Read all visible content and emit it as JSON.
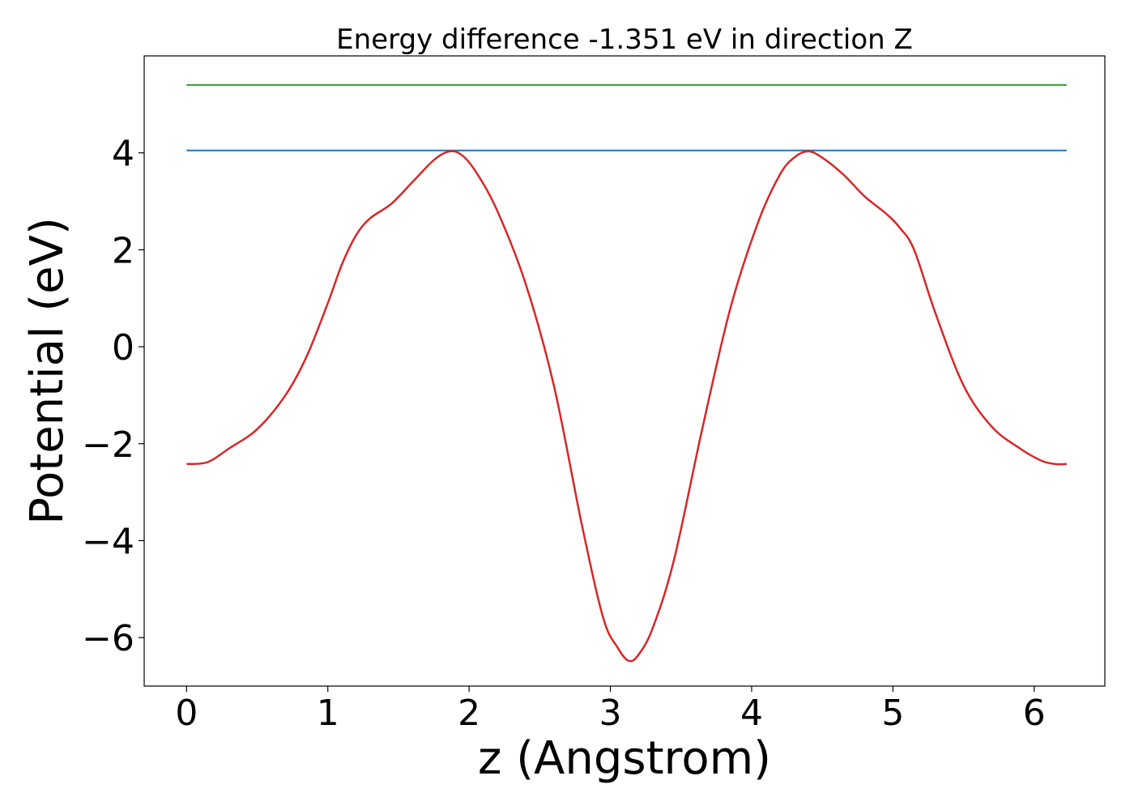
{
  "chart_data": {
    "type": "line",
    "title": "Energy difference -1.351 eV in direction Z",
    "xlabel": "z (Angstrom)",
    "ylabel": "Potential (eV)",
    "xlim": [
      -0.3,
      6.5
    ],
    "ylim": [
      -7.0,
      6.0
    ],
    "xticks": [
      0,
      1,
      2,
      3,
      4,
      5,
      6
    ],
    "xtick_labels": [
      "0",
      "1",
      "2",
      "3",
      "4",
      "5",
      "6"
    ],
    "yticks": [
      -6,
      -4,
      -2,
      0,
      2,
      4
    ],
    "ytick_labels": [
      "−6",
      "−4",
      "−2",
      "0",
      "2",
      "4"
    ],
    "grid": false,
    "series": [
      {
        "color": "#2ca02c",
        "x": [
          0,
          6.23
        ],
        "y": [
          5.4,
          5.4
        ]
      },
      {
        "color": "#1f77b4",
        "x": [
          0,
          6.23
        ],
        "y": [
          4.05,
          4.05
        ]
      },
      {
        "color": "#d62728",
        "x": [
          0,
          0.15,
          0.3,
          0.5,
          0.7,
          0.85,
          1.0,
          1.1,
          1.2,
          1.3,
          1.45,
          1.6,
          1.75,
          1.86,
          1.95,
          2.05,
          2.2,
          2.4,
          2.6,
          2.8,
          2.95,
          3.05,
          3.13,
          3.2,
          3.3,
          3.45,
          3.65,
          3.85,
          4.05,
          4.2,
          4.3,
          4.4,
          4.5,
          4.65,
          4.8,
          4.95,
          5.05,
          5.15,
          5.3,
          5.5,
          5.7,
          5.9,
          6.05,
          6.15,
          6.23
        ],
        "y": [
          -2.42,
          -2.38,
          -2.1,
          -1.7,
          -1.0,
          -0.2,
          0.9,
          1.7,
          2.3,
          2.65,
          2.95,
          3.4,
          3.85,
          4.03,
          3.95,
          3.6,
          2.8,
          1.3,
          -0.8,
          -3.7,
          -5.6,
          -6.2,
          -6.48,
          -6.35,
          -5.8,
          -4.4,
          -1.7,
          0.8,
          2.6,
          3.55,
          3.9,
          4.03,
          3.9,
          3.55,
          3.1,
          2.75,
          2.45,
          2.0,
          0.7,
          -0.8,
          -1.65,
          -2.1,
          -2.35,
          -2.42,
          -2.42
        ]
      }
    ]
  }
}
